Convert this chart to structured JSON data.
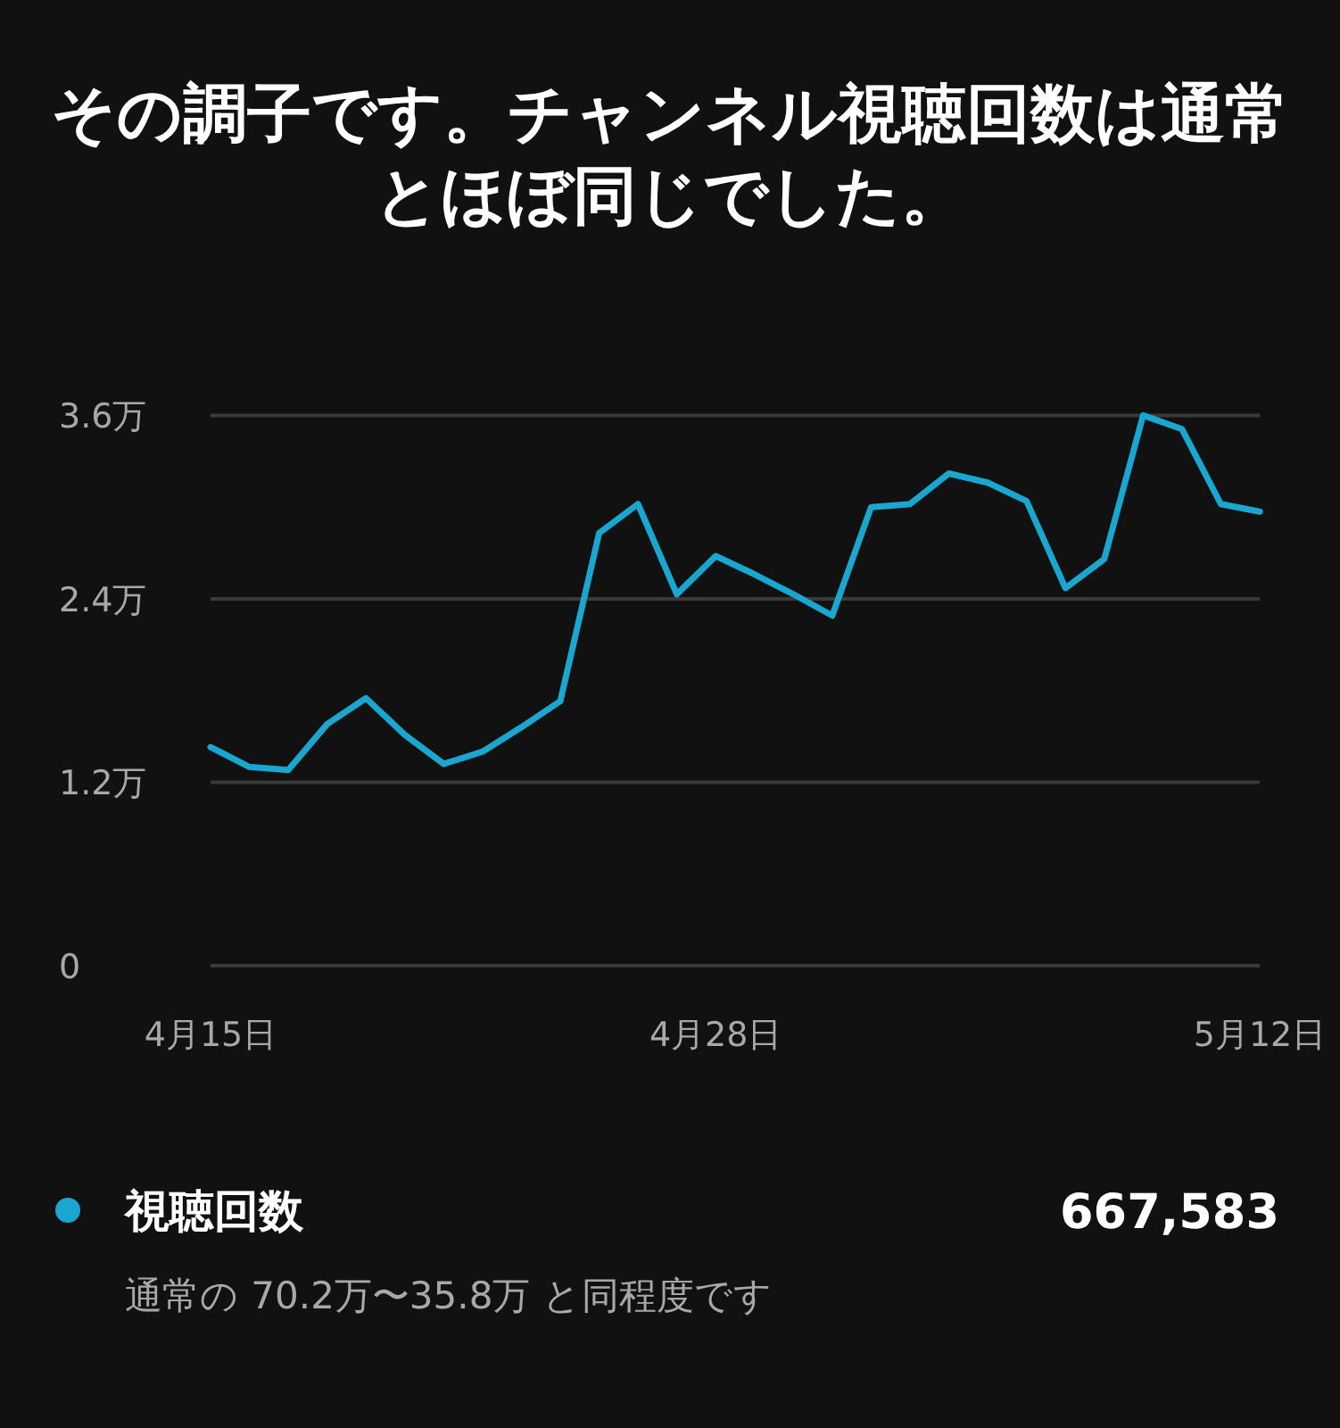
{
  "chart_data": {
    "type": "line",
    "title": "その調子です。チャンネル視聴回数は通常とほぼ同じでした。",
    "categories": [
      "4月15日",
      null,
      null,
      null,
      null,
      null,
      null,
      null,
      null,
      null,
      null,
      null,
      null,
      "4月28日",
      null,
      null,
      null,
      null,
      null,
      null,
      null,
      null,
      null,
      null,
      null,
      null,
      null,
      "5月12日"
    ],
    "series": [
      {
        "name": "視聴回数",
        "color": "#19a6cf",
        "values": [
          1.43,
          1.3,
          1.28,
          1.58,
          1.75,
          1.51,
          1.32,
          1.4,
          1.56,
          1.73,
          2.83,
          3.02,
          2.43,
          2.68,
          2.56,
          2.43,
          2.29,
          3.0,
          3.02,
          3.22,
          3.16,
          3.04,
          2.47,
          2.66,
          3.6,
          3.51,
          3.02,
          2.97
        ]
      }
    ],
    "ylim": [
      0,
      3.6
    ],
    "yticks": [
      0,
      {
        "value": 1.2,
        "label": "1.2万"
      },
      {
        "value": 2.4,
        "label": "2.4万"
      },
      {
        "value": 3.6,
        "label": "3.6万"
      }
    ],
    "grid": "y",
    "legend": "bottom",
    "marker": "none",
    "line_style": "solid",
    "annotations": [
      "667,583",
      "通常の 70.2万〜35.8万 と同程度です"
    ]
  }
}
